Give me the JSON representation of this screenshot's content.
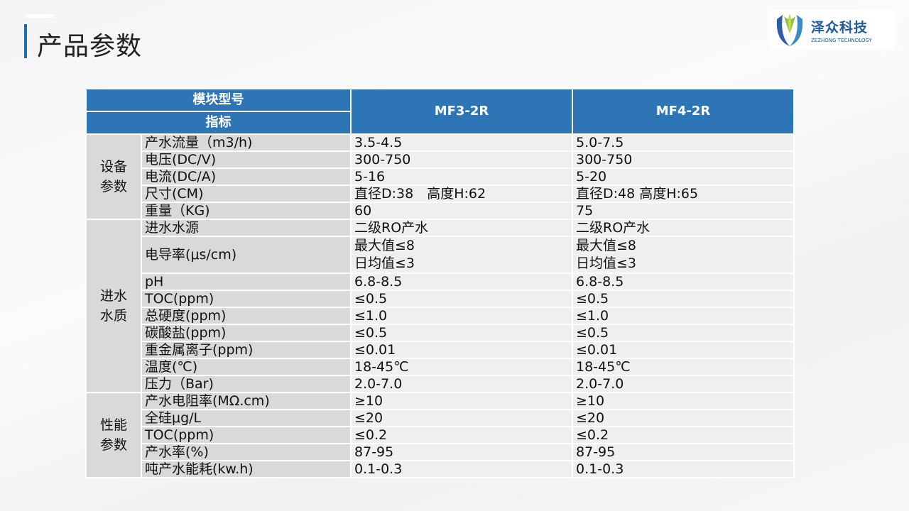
{
  "title": "产品参数",
  "logo": {
    "cn": "泽众科技",
    "en": "ZEZHONG TECHNOLOGY",
    "color": "#1d5a9e"
  },
  "colors": {
    "header": "#2e75b6",
    "label_bg": "#d9d9d9",
    "value_bg": "#efefef"
  },
  "table": {
    "header": {
      "model_label": "模块型号",
      "indicator_label": "指标",
      "models": [
        "MF3-2R",
        "MF4-2R"
      ]
    },
    "groups": [
      {
        "name": "设备\n参数",
        "rows": [
          {
            "label": "产水流量（m3/h)",
            "values": [
              "3.5-4.5",
              "5.0-7.5"
            ]
          },
          {
            "label": "电压(DC/V)",
            "values": [
              "300-750",
              "300-750"
            ]
          },
          {
            "label": "电流(DC/A)",
            "values": [
              "5-16",
              "5-20"
            ]
          },
          {
            "label": "尺寸(CM)",
            "values": [
              "直径D:38　高度H:62",
              "直径D:48  高度H:65"
            ]
          },
          {
            "label": "重量（KG)",
            "values": [
              "60",
              "75"
            ]
          }
        ]
      },
      {
        "name": "进水\n水质",
        "rows": [
          {
            "label": "进水水源",
            "values": [
              "二级RO产水",
              "二级RO产水"
            ]
          },
          {
            "label": "电导率(μs/cm)",
            "values": [
              "最大值≤8\n日均值≤3",
              "最大值≤8\n日均值≤3"
            ],
            "double": true
          },
          {
            "label": "pH",
            "values": [
              "6.8-8.5",
              "6.8-8.5"
            ]
          },
          {
            "label": "TOC(ppm)",
            "values": [
              "≤0.5",
              "≤0.5"
            ]
          },
          {
            "label": "总硬度(ppm)",
            "values": [
              "≤1.0",
              "≤1.0"
            ]
          },
          {
            "label": "碳酸盐(ppm)",
            "values": [
              "≤0.5",
              "≤0.5"
            ]
          },
          {
            "label": "重金属离子(ppm)",
            "values": [
              "≤0.01",
              "≤0.01"
            ]
          },
          {
            "label": "温度(℃)",
            "values": [
              "18-45℃",
              "18-45℃"
            ]
          },
          {
            "label": "压力（Bar)",
            "values": [
              "2.0-7.0",
              "2.0-7.0"
            ]
          }
        ]
      },
      {
        "name": "性能\n参数",
        "rows": [
          {
            "label": "产水电阻率(MΩ.cm)",
            "values": [
              "≥10",
              "≥10"
            ]
          },
          {
            "label": "全硅μg/L",
            "values": [
              "≤20",
              "≤20"
            ]
          },
          {
            "label": "TOC(ppm)",
            "values": [
              "≤0.2",
              "≤0.2"
            ]
          },
          {
            "label": "产水率(%)",
            "values": [
              "87-95",
              "87-95"
            ]
          },
          {
            "label": "吨产水能耗(kw.h)",
            "values": [
              "0.1-0.3",
              "0.1-0.3"
            ]
          }
        ]
      }
    ]
  }
}
